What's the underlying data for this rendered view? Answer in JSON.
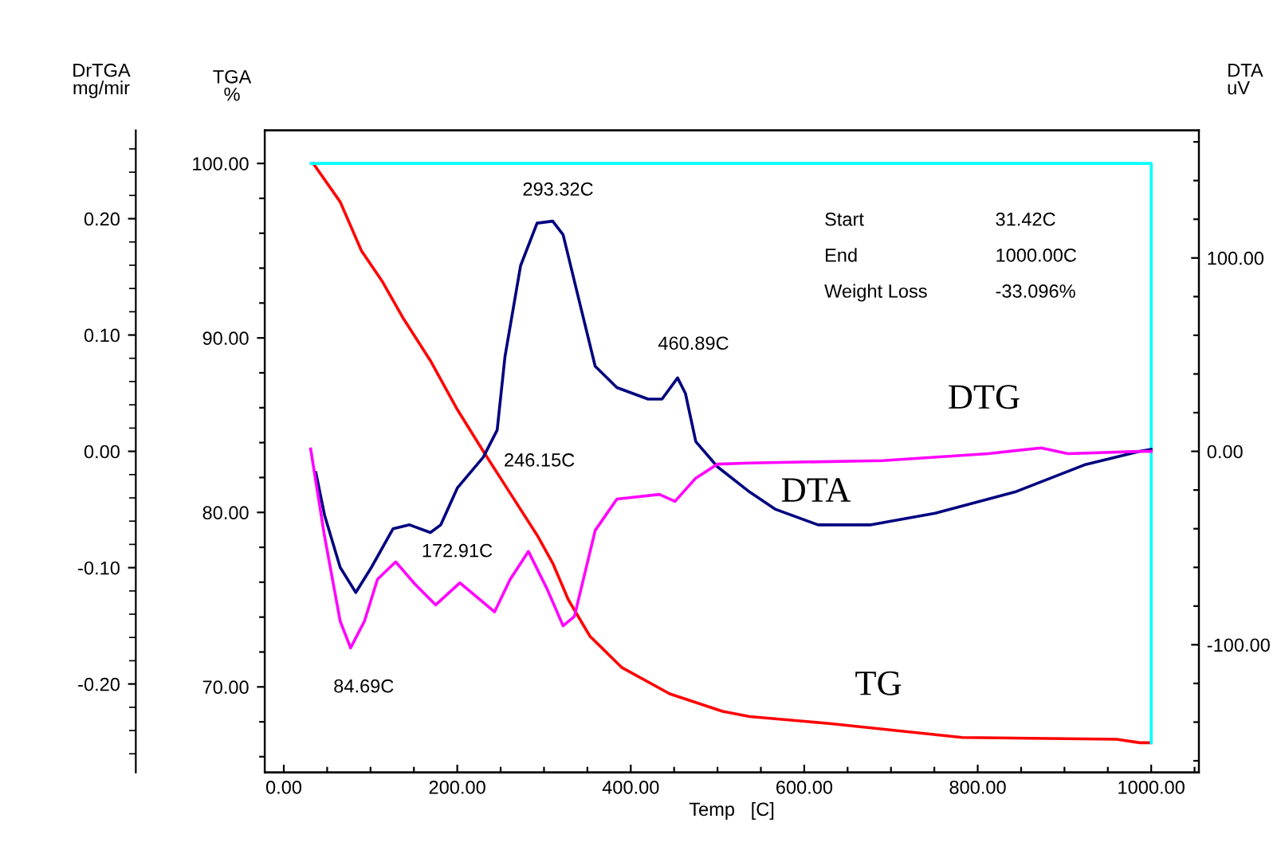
{
  "chart_data": {
    "type": "line",
    "xlabel": "Temp   [C]",
    "ylabel": "TGA\n%",
    "y2label": "DTA\nuV",
    "y3label": "DrTGA\nmg/mir",
    "xlim": [
      -22,
      1055
    ],
    "xticks": [
      {
        "value": 0,
        "label": "0.00"
      },
      {
        "value": 50,
        "label": null
      },
      {
        "value": 100,
        "label": null
      },
      {
        "value": 150,
        "label": null
      },
      {
        "value": 200,
        "label": "200.00"
      },
      {
        "value": 250,
        "label": null
      },
      {
        "value": 300,
        "label": null
      },
      {
        "value": 350,
        "label": null
      },
      {
        "value": 400,
        "label": "400.00"
      },
      {
        "value": 450,
        "label": null
      },
      {
        "value": 500,
        "label": null
      },
      {
        "value": 550,
        "label": null
      },
      {
        "value": 600,
        "label": "600.00"
      },
      {
        "value": 650,
        "label": null
      },
      {
        "value": 700,
        "label": null
      },
      {
        "value": 750,
        "label": null
      },
      {
        "value": 800,
        "label": "800.00"
      },
      {
        "value": 850,
        "label": null
      },
      {
        "value": 900,
        "label": null
      },
      {
        "value": 950,
        "label": null
      },
      {
        "value": 1000,
        "label": "1000.00"
      },
      {
        "value": 1050,
        "label": null
      }
    ],
    "ylim": [
      65.1,
      101.9
    ],
    "yticks": [
      {
        "value": 66,
        "label": null
      },
      {
        "value": 68,
        "label": null
      },
      {
        "value": 70,
        "label": "70.00"
      },
      {
        "value": 72,
        "label": null
      },
      {
        "value": 74,
        "label": null
      },
      {
        "value": 76,
        "label": null
      },
      {
        "value": 78,
        "label": null
      },
      {
        "value": 80,
        "label": "80.00"
      },
      {
        "value": 82,
        "label": null
      },
      {
        "value": 84,
        "label": null
      },
      {
        "value": 86,
        "label": null
      },
      {
        "value": 88,
        "label": null
      },
      {
        "value": 90,
        "label": "90.00"
      },
      {
        "value": 92,
        "label": null
      },
      {
        "value": 94,
        "label": null
      },
      {
        "value": 96,
        "label": null
      },
      {
        "value": 98,
        "label": null
      },
      {
        "value": 100,
        "label": "100.00"
      }
    ],
    "y2lim": [
      -166,
      166
    ],
    "y2ticks": [
      {
        "value": -160,
        "label": null
      },
      {
        "value": -140,
        "label": null
      },
      {
        "value": -120,
        "label": null
      },
      {
        "value": -100,
        "label": "-100.00"
      },
      {
        "value": -80,
        "label": null
      },
      {
        "value": -60,
        "label": null
      },
      {
        "value": -40,
        "label": null
      },
      {
        "value": -20,
        "label": null
      },
      {
        "value": 0,
        "label": "0.00"
      },
      {
        "value": 20,
        "label": null
      },
      {
        "value": 40,
        "label": null
      },
      {
        "value": 60,
        "label": null
      },
      {
        "value": 80,
        "label": null
      },
      {
        "value": 100,
        "label": "100.00"
      },
      {
        "value": 120,
        "label": null
      },
      {
        "value": 140,
        "label": null
      },
      {
        "value": 160,
        "label": null
      }
    ],
    "y3lim": [
      -0.276,
      0.276
    ],
    "y3ticks": [
      {
        "value": -0.2,
        "label": "-0.20"
      },
      {
        "value": -0.1,
        "label": "-0.10"
      },
      {
        "value": 0,
        "label": "0.00"
      },
      {
        "value": 0.1,
        "label": "0.10"
      },
      {
        "value": 0.2,
        "label": "0.20"
      }
    ],
    "legend": false,
    "marker": "none",
    "line_style": "solid",
    "series": [
      {
        "name": "TG",
        "color": "#ff0000",
        "axis": "y",
        "x": [
          34,
          65,
          89.5,
          114,
          138,
          169,
          200,
          230,
          261,
          292,
          310,
          328,
          353,
          390,
          445,
          506,
          537,
          629,
          782,
          960,
          987,
          1000
        ],
        "values": [
          100.0,
          97.8,
          95.0,
          93.2,
          91.1,
          88.7,
          85.9,
          83.5,
          81.1,
          78.7,
          77.1,
          75.0,
          72.9,
          71.1,
          69.6,
          68.6,
          68.3,
          67.9,
          67.1,
          67.0,
          66.8,
          66.8
        ]
      },
      {
        "name": "DTA",
        "color": "#000080",
        "axis": "y2",
        "x": [
          37,
          47,
          65,
          83,
          101,
          126,
          145,
          169,
          181,
          200,
          230,
          246,
          255,
          273,
          292,
          310,
          322,
          341,
          359,
          384,
          420,
          436,
          454,
          463,
          475,
          500,
          537,
          567,
          616,
          677,
          751,
          843,
          923,
          987,
          1000
        ],
        "values": [
          -11,
          -33,
          -60,
          -73,
          -60,
          -40,
          -38,
          -42,
          -38,
          -19,
          -3,
          11,
          49,
          96,
          118,
          119,
          112,
          77,
          44,
          33,
          27,
          27,
          38,
          30,
          5,
          -8,
          -21,
          -30,
          -38,
          -38,
          -32,
          -21,
          -7,
          0,
          1
        ]
      },
      {
        "name": "DTG",
        "color": "#ff00ff",
        "axis": "y3",
        "x": [
          31,
          47,
          65,
          77,
          93,
          108,
          129,
          151,
          175,
          203,
          243,
          261,
          282,
          304,
          322,
          335,
          359,
          384,
          433,
          451,
          475,
          500,
          537,
          690,
          812,
          873,
          904,
          987,
          1000
        ],
        "values": [
          0.002,
          -0.073,
          -0.146,
          -0.169,
          -0.146,
          -0.11,
          -0.095,
          -0.114,
          -0.132,
          -0.113,
          -0.138,
          -0.11,
          -0.086,
          -0.119,
          -0.15,
          -0.142,
          -0.068,
          -0.041,
          -0.037,
          -0.043,
          -0.023,
          -0.011,
          -0.01,
          -0.008,
          -0.002,
          0.003,
          -0.002,
          0.0,
          0.0
        ]
      },
      {
        "color": "#00ffff",
        "axis": "y",
        "x": [
          31.42,
          1000,
          1000
        ],
        "values": [
          100.0,
          100.0,
          66.8
        ]
      }
    ],
    "annotations": [
      "293.32C",
      "460.89C",
      "246.15C",
      "172.91C",
      "84.69C",
      "Start",
      "31.42C",
      "End",
      "1000.00C",
      "Weight Loss",
      "-33.096%"
    ]
  }
}
